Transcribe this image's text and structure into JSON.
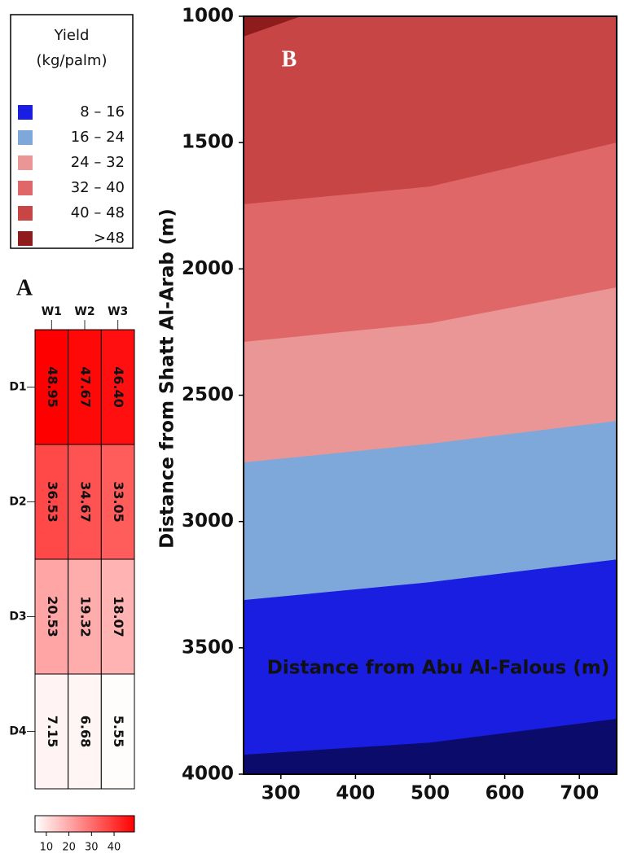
{
  "chart_data": [
    {
      "type": "heatmap",
      "label": "A",
      "columns": [
        "W1",
        "W2",
        "W3"
      ],
      "rows": [
        "D1",
        "D2",
        "D3",
        "D4"
      ],
      "values": [
        [
          48.95,
          47.67,
          46.4
        ],
        [
          36.53,
          34.67,
          33.05
        ],
        [
          20.53,
          19.32,
          18.07
        ],
        [
          7.15,
          6.68,
          5.55
        ]
      ],
      "value_labels": [
        [
          "48.95",
          "47.67",
          "46.40"
        ],
        [
          "36.53",
          "34.67",
          "33.05"
        ],
        [
          "20.53",
          "19.32",
          "18.07"
        ],
        [
          "7.15",
          "6.68",
          "5.55"
        ]
      ],
      "colors": [
        "#ffffff",
        "#ff0000"
      ],
      "clim": [
        5,
        49
      ],
      "cticks": [
        10,
        20,
        30,
        40
      ]
    },
    {
      "type": "contour",
      "label": "B",
      "xlabel": "Distance from Abu Al-Falous (m)",
      "ylabel": "Distance from Shatt Al-Arab (m)",
      "xlim": [
        250,
        750
      ],
      "xticks": [
        300,
        400,
        500,
        600,
        700
      ],
      "ylim": [
        1000,
        4000
      ],
      "yticks": [
        1000,
        1500,
        2000,
        2500,
        3000,
        3500,
        4000
      ],
      "y_inverted": true,
      "band_colors": [
        "#0b0b6b",
        "#1a1ee0",
        "#7ea8da",
        "#ea9696",
        "#e06767",
        "#c84545",
        "#8e1c1c"
      ],
      "boundaries": [
        {
          "x": [
            250,
            500,
            750
          ],
          "y": [
            3923,
            3875,
            3781
          ]
        },
        {
          "x": [
            250,
            500,
            750
          ],
          "y": [
            3311,
            3240,
            3150
          ]
        },
        {
          "x": [
            250,
            500,
            750
          ],
          "y": [
            2766,
            2692,
            2602
          ]
        },
        {
          "x": [
            250,
            500,
            750
          ],
          "y": [
            2289,
            2215,
            2073
          ]
        },
        {
          "x": [
            250,
            500,
            750
          ],
          "y": [
            1744,
            1674,
            1500
          ]
        },
        {
          "x": [
            250,
            327
          ],
          "y": [
            1080,
            1000
          ]
        }
      ],
      "legend": {
        "title": [
          "Yield",
          "(kg/palm)"
        ],
        "items": [
          {
            "label": "8 – 16",
            "color": "#1a1ee0"
          },
          {
            "label": "16 – 24",
            "color": "#7ea8da"
          },
          {
            "label": "24 – 32",
            "color": "#ea9696"
          },
          {
            "label": "32 – 40",
            "color": "#e06767"
          },
          {
            "label": "40 – 48",
            "color": "#c84545"
          },
          {
            "label": ">48",
            "color": "#8e1c1c"
          }
        ]
      }
    }
  ]
}
